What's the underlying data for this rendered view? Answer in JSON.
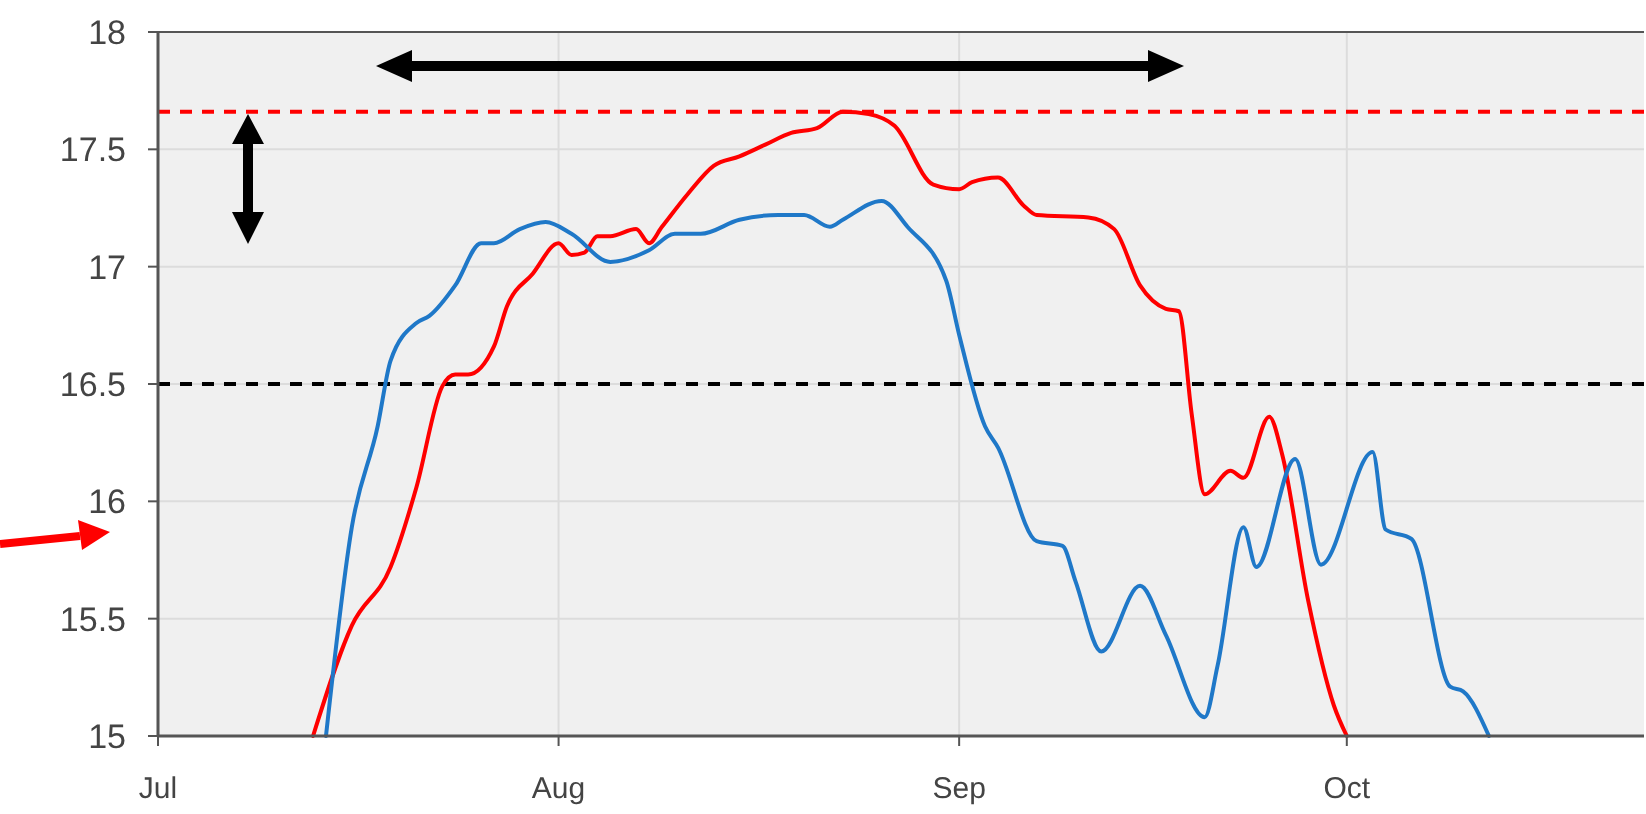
{
  "chart_data": {
    "type": "line",
    "xlim": [
      "--07-01",
      "--10-24"
    ],
    "xticks": [
      {
        "value": "--07-01",
        "label": "Jul"
      },
      {
        "value": "--08-01",
        "label": "Aug"
      },
      {
        "value": "--09-01",
        "label": "Sep"
      },
      {
        "value": "--10-01",
        "label": "Oct"
      }
    ],
    "ylim": [
      15,
      18
    ],
    "yticks": [
      15,
      15.5,
      16,
      16.5,
      17,
      17.5,
      18
    ],
    "grid": true,
    "line_style": "solid",
    "ref_lines": [
      {
        "axis": "y",
        "value": 17.66,
        "color": "#ff0000",
        "line_style": "dashed"
      },
      {
        "axis": "y",
        "value": 16.5,
        "color": "#000000",
        "line_style": "dashed"
      }
    ],
    "series": [
      {
        "color": "#ff0000",
        "x": [
          "--07-13",
          "--07-16",
          "--07-19",
          "--07-21",
          "--07-23",
          "--07-24",
          "--07-25",
          "--07-27",
          "--07-28",
          "--07-30",
          "--08-01",
          "--08-02",
          "--08-03",
          "--08-04",
          "--08-05",
          "--08-07",
          "--08-08",
          "--08-09",
          "--08-11",
          "--08-13",
          "--08-15",
          "--08-17",
          "--08-19",
          "--08-21",
          "--08-23",
          "--08-25",
          "--08-27",
          "--08-30",
          "--09-01",
          "--09-02",
          "--09-04",
          "--09-06",
          "--09-07",
          "--09-11",
          "--09-13",
          "--09-15",
          "--09-17",
          "--09-18",
          "--09-19",
          "--09-20",
          "--09-22",
          "--09-23",
          "--09-25",
          "--09-26",
          "--09-28",
          "--09-30",
          "--10-01"
        ],
        "values": [
          15.0,
          15.47,
          15.72,
          16.06,
          16.49,
          16.54,
          16.54,
          16.66,
          16.83,
          16.97,
          17.1,
          17.05,
          17.06,
          17.13,
          17.13,
          17.16,
          17.1,
          17.17,
          17.31,
          17.43,
          17.47,
          17.52,
          17.57,
          17.59,
          17.66,
          17.65,
          17.6,
          17.35,
          17.33,
          17.36,
          17.38,
          17.26,
          17.22,
          17.21,
          17.16,
          16.92,
          16.82,
          16.81,
          16.37,
          16.03,
          16.13,
          16.1,
          16.36,
          16.2,
          15.58,
          15.13,
          15.0
        ]
      },
      {
        "color": "#1f78c8",
        "x": [
          "--07-14",
          "--07-16",
          "--07-18",
          "--07-19",
          "--07-21",
          "--07-22",
          "--07-24",
          "--07-26",
          "--07-27",
          "--07-29",
          "--07-31",
          "--08-02",
          "--08-05",
          "--08-08",
          "--08-10",
          "--08-12",
          "--08-15",
          "--08-18",
          "--08-20",
          "--08-22",
          "--08-23",
          "--08-26",
          "--08-28",
          "--08-31",
          "--09-01",
          "--09-03",
          "--09-04",
          "--09-07",
          "--09-09",
          "--09-10",
          "--09-12",
          "--09-15",
          "--09-17",
          "--09-20",
          "--09-21",
          "--09-23",
          "--09-24",
          "--09-27",
          "--09-29",
          "--10-03",
          "--10-04",
          "--10-06",
          "--10-09",
          "--10-10",
          "--10-12"
        ],
        "values": [
          15.0,
          15.89,
          16.32,
          16.6,
          16.76,
          16.79,
          16.92,
          17.1,
          17.1,
          17.16,
          17.19,
          17.14,
          17.02,
          17.07,
          17.14,
          17.14,
          17.2,
          17.22,
          17.22,
          17.17,
          17.2,
          17.28,
          17.17,
          16.94,
          16.71,
          16.32,
          16.23,
          15.83,
          15.81,
          15.66,
          15.36,
          15.64,
          15.43,
          15.08,
          15.3,
          15.89,
          15.72,
          16.18,
          15.73,
          16.21,
          15.88,
          15.84,
          15.21,
          15.19,
          15.0
        ]
      }
    ]
  }
}
